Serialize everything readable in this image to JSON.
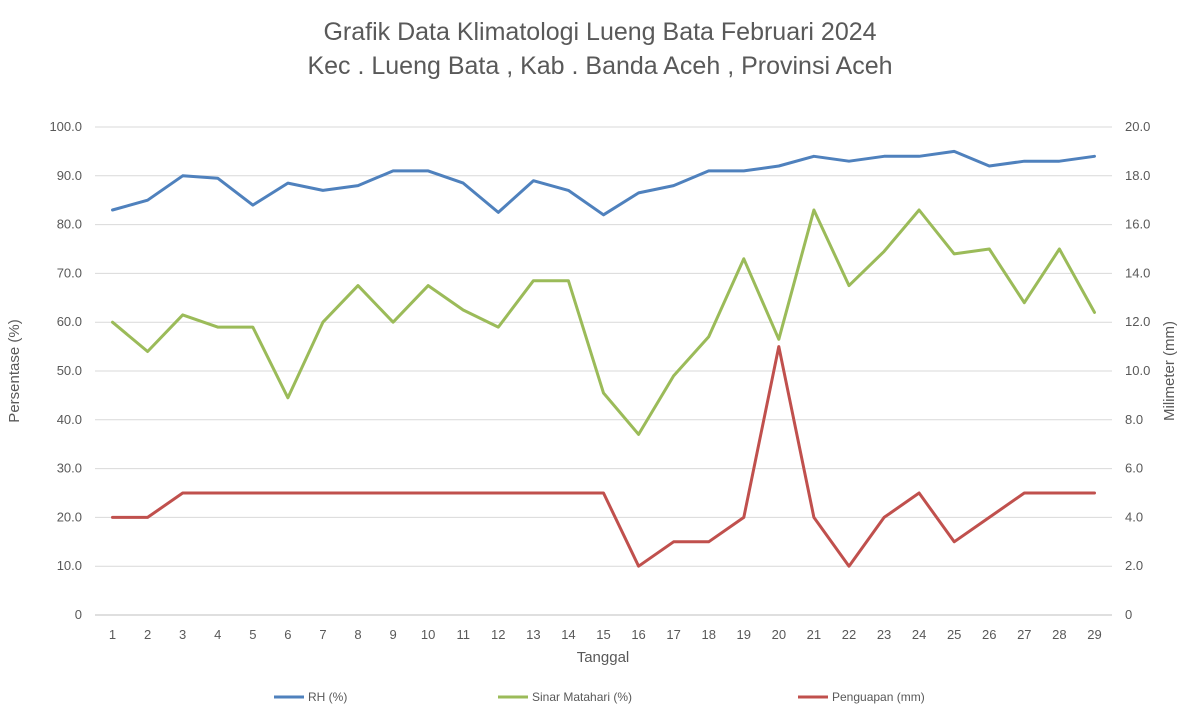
{
  "chart_data": {
    "type": "line",
    "title": "Grafik Data Klimatologi Lueng Bata Februari 2024",
    "subtitle": "Kec . Lueng Bata , Kab . Banda Aceh , Provinsi  Aceh",
    "xlabel": "Tanggal",
    "ylabel": "Persentase (%)",
    "y2label": "Milimeter (mm)",
    "ylim": [
      0,
      100
    ],
    "y2lim": [
      0,
      20
    ],
    "yticks": [
      "0",
      "10.0",
      "20.0",
      "30.0",
      "40.0",
      "50.0",
      "60.0",
      "70.0",
      "80.0",
      "90.0",
      "100.0"
    ],
    "y2ticks": [
      "0",
      "2.0",
      "4.0",
      "6.0",
      "8.0",
      "10.0",
      "12.0",
      "14.0",
      "16.0",
      "18.0",
      "20.0"
    ],
    "grid": true,
    "legend_position": "bottom",
    "categories": [
      "1",
      "2",
      "3",
      "4",
      "5",
      "6",
      "7",
      "8",
      "9",
      "10",
      "11",
      "12",
      "13",
      "14",
      "15",
      "16",
      "17",
      "18",
      "19",
      "20",
      "21",
      "22",
      "23",
      "24",
      "25",
      "26",
      "27",
      "28",
      "29"
    ],
    "series": [
      {
        "name": "RH (%)",
        "axis": "left",
        "color": "#4f81bd",
        "values": [
          83,
          85,
          90,
          89.5,
          84,
          88.5,
          87,
          88,
          91,
          91,
          88.5,
          82.5,
          89,
          87,
          82,
          86.5,
          88,
          91,
          91,
          92,
          94,
          93,
          94,
          94,
          95,
          92,
          93,
          93,
          94
        ]
      },
      {
        "name": "Sinar Matahari (%)",
        "axis": "left",
        "color": "#9bbb59",
        "values": [
          60,
          54,
          61.5,
          59,
          59,
          44.5,
          60,
          67.5,
          60,
          67.5,
          62.5,
          59,
          68.5,
          68.5,
          45.5,
          37,
          49,
          57,
          73,
          56.5,
          83,
          67.5,
          74.5,
          83,
          74,
          75,
          64,
          75,
          62
        ]
      },
      {
        "name": "Penguapan (mm)",
        "axis": "right",
        "color": "#c0504d",
        "values": [
          4,
          4,
          5,
          5,
          5,
          5,
          5,
          5,
          5,
          5,
          5,
          5,
          5,
          5,
          5,
          2,
          3,
          3,
          4,
          11,
          4,
          2,
          4,
          5,
          3,
          4,
          5,
          5,
          5
        ]
      }
    ]
  }
}
